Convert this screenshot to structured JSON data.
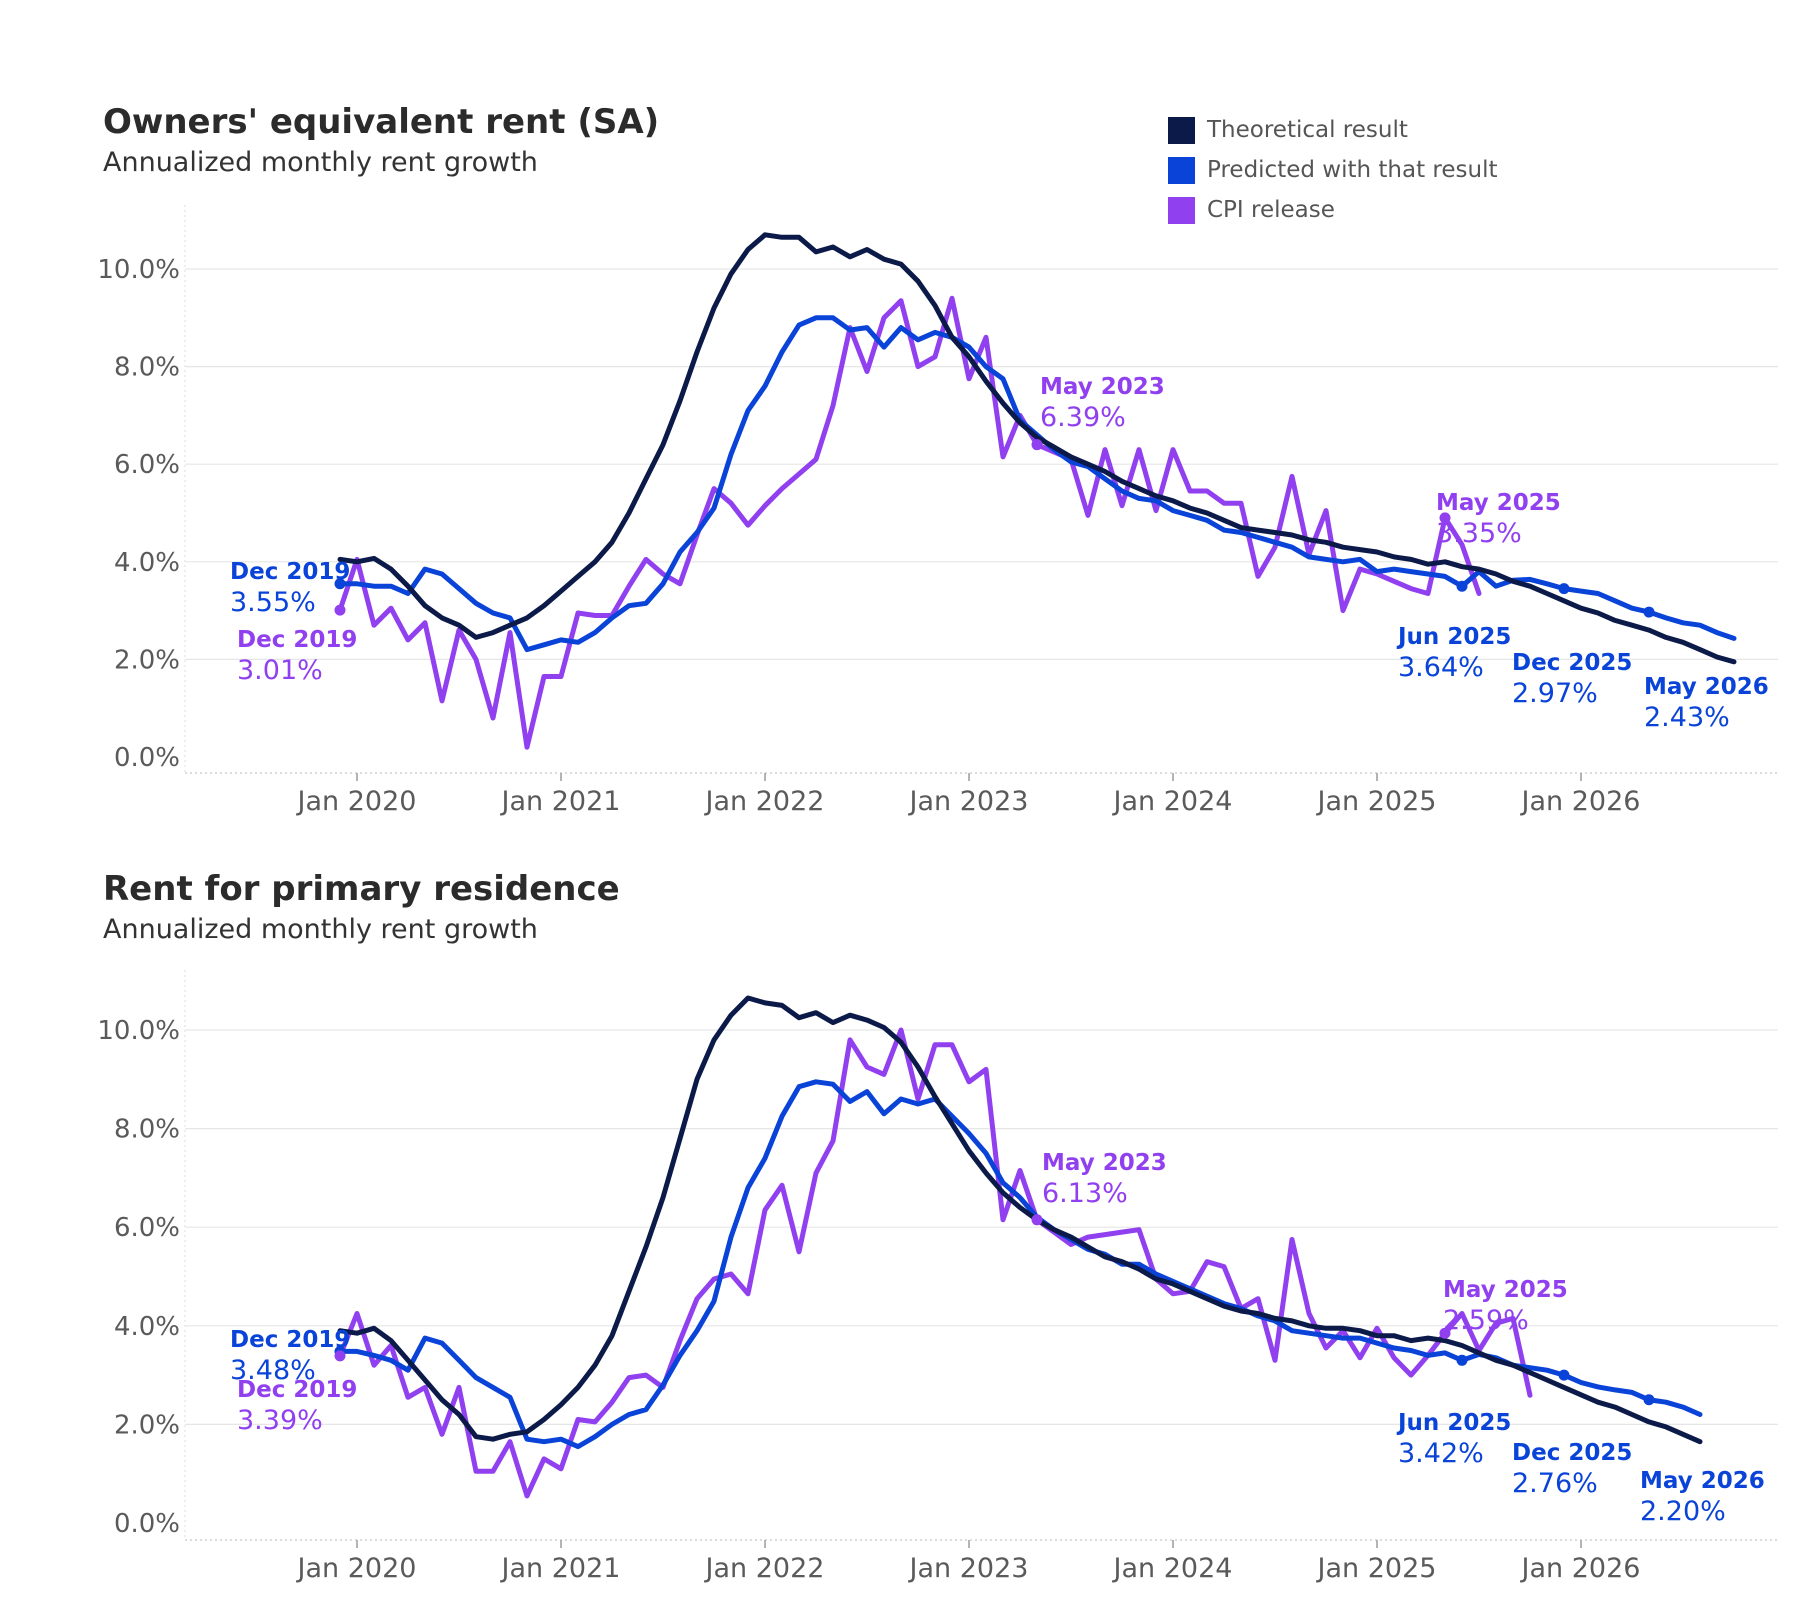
{
  "colors": {
    "theoretical": "#0b1a48",
    "predicted": "#0a43d8",
    "cpi": "#9140f0",
    "grid": "#e6e6e6",
    "axis_text": "#5a5a5a"
  },
  "legend": {
    "items": [
      {
        "label": "Theoretical result",
        "color": "#0b1a48"
      },
      {
        "label": "Predicted with that result",
        "color": "#0a43d8"
      },
      {
        "label": "CPI release",
        "color": "#9140f0"
      }
    ]
  },
  "chart_data": [
    {
      "type": "line",
      "title": "Owners' equivalent rent (SA)",
      "subtitle": "Annualized monthly rent growth",
      "ylim": [
        0,
        10.9
      ],
      "y_ticks": [
        "0.0%",
        "2.0%",
        "4.0%",
        "6.0%",
        "8.0%",
        "10.0%"
      ],
      "x_ticks": [
        "Jan 2020",
        "Jan 2021",
        "Jan 2022",
        "Jan 2023",
        "Jan 2024",
        "Jan 2025",
        "Jan 2026"
      ],
      "x_range": [
        "Dec 2019",
        "May 2026"
      ],
      "grid": true,
      "series": [
        {
          "name": "Theoretical result",
          "start": "Dec 2019",
          "values": [
            4.05,
            4.0,
            4.07,
            3.85,
            3.5,
            3.1,
            2.85,
            2.7,
            2.45,
            2.55,
            2.7,
            2.85,
            3.1,
            3.4,
            3.7,
            4.0,
            4.4,
            5.0,
            5.7,
            6.4,
            7.3,
            8.3,
            9.2,
            9.9,
            10.4,
            10.7,
            10.65,
            10.65,
            10.35,
            10.45,
            10.25,
            10.4,
            10.2,
            10.1,
            9.75,
            9.25,
            8.6,
            8.2,
            7.7,
            7.25,
            6.85,
            6.55,
            6.35,
            6.15,
            6.0,
            5.85,
            5.65,
            5.5,
            5.35,
            5.25,
            5.1,
            5.0,
            4.85,
            4.7,
            4.65,
            4.6,
            4.55,
            4.45,
            4.4,
            4.3,
            4.25,
            4.2,
            4.1,
            4.05,
            3.95,
            4.0,
            3.9,
            3.85,
            3.75,
            3.6,
            3.5,
            3.35,
            3.2,
            3.05,
            2.95,
            2.8,
            2.7,
            2.6,
            2.45,
            2.35,
            2.2,
            2.05,
            1.95
          ]
        },
        {
          "name": "Predicted with that result",
          "start": "Dec 2019",
          "values": [
            3.55,
            3.55,
            3.5,
            3.5,
            3.35,
            3.85,
            3.75,
            3.45,
            3.15,
            2.95,
            2.85,
            2.2,
            2.3,
            2.4,
            2.35,
            2.55,
            2.85,
            3.1,
            3.15,
            3.55,
            4.2,
            4.6,
            5.1,
            6.2,
            7.1,
            7.6,
            8.3,
            8.85,
            9.0,
            9.0,
            8.75,
            8.8,
            8.4,
            8.8,
            8.55,
            8.7,
            8.6,
            8.4,
            8.0,
            7.75,
            6.9,
            6.6,
            6.3,
            6.05,
            5.95,
            5.7,
            5.45,
            5.3,
            5.25,
            5.05,
            4.95,
            4.85,
            4.65,
            4.6,
            4.5,
            4.4,
            4.3,
            4.1,
            4.05,
            4.0,
            4.05,
            3.8,
            3.85,
            3.8,
            3.75,
            3.7,
            3.5,
            3.8,
            3.5,
            3.62,
            3.64,
            3.55,
            3.45,
            3.4,
            3.35,
            3.2,
            3.05,
            2.97,
            2.85,
            2.75,
            2.7,
            2.55,
            2.43
          ]
        },
        {
          "name": "CPI release",
          "start": "Dec 2019",
          "values": [
            3.01,
            4.05,
            2.7,
            3.05,
            2.4,
            2.75,
            1.15,
            2.6,
            2.0,
            0.8,
            2.55,
            0.2,
            1.65,
            1.65,
            2.95,
            2.9,
            2.9,
            3.5,
            4.05,
            3.75,
            3.55,
            4.55,
            5.5,
            5.2,
            4.75,
            5.15,
            5.5,
            5.8,
            6.1,
            7.2,
            8.8,
            7.9,
            9.0,
            9.35,
            8.0,
            8.2,
            9.4,
            7.75,
            8.6,
            6.15,
            7.0,
            6.4,
            6.25,
            6.1,
            4.95,
            6.3,
            5.15,
            6.3,
            5.05,
            6.3,
            5.45,
            5.45,
            5.2,
            5.2,
            3.7,
            4.3,
            5.75,
            4.15,
            5.05,
            3.0,
            3.85,
            3.75,
            3.6,
            3.45,
            3.35,
            4.9,
            4.35,
            3.35
          ]
        }
      ],
      "annotations": [
        {
          "label": "Dec 2019",
          "value": "3.55%",
          "series": "Predicted with that result",
          "point": "Dec 2019"
        },
        {
          "label": "Dec 2019",
          "value": "3.01%",
          "series": "CPI release",
          "point": "Dec 2019"
        },
        {
          "label": "May 2023",
          "value": "6.39%",
          "series": "CPI release",
          "point": "May 2023"
        },
        {
          "label": "May 2025",
          "value": "3.35%",
          "series": "CPI release",
          "point": "May 2025"
        },
        {
          "label": "Jun 2025",
          "value": "3.64%",
          "series": "Predicted with that result",
          "point": "Jun 2025"
        },
        {
          "label": "Dec 2025",
          "value": "2.97%",
          "series": "Predicted with that result",
          "point": "Dec 2025"
        },
        {
          "label": "May 2026",
          "value": "2.43%",
          "series": "Predicted with that result",
          "point": "May 2026"
        }
      ]
    },
    {
      "type": "line",
      "title": "Rent for primary residence",
      "subtitle": "Annualized monthly rent growth",
      "ylim": [
        0,
        10.9
      ],
      "y_ticks": [
        "0.0%",
        "2.0%",
        "4.0%",
        "6.0%",
        "8.0%",
        "10.0%"
      ],
      "x_ticks": [
        "Jan 2020",
        "Jan 2021",
        "Jan 2022",
        "Jan 2023",
        "Jan 2024",
        "Jan 2025",
        "Jan 2026"
      ],
      "x_range": [
        "Dec 2019",
        "May 2026"
      ],
      "grid": true,
      "series": [
        {
          "name": "Theoretical result",
          "start": "Dec 2019",
          "values": [
            3.9,
            3.85,
            3.95,
            3.7,
            3.3,
            2.9,
            2.5,
            2.2,
            1.75,
            1.7,
            1.8,
            1.85,
            2.1,
            2.4,
            2.75,
            3.2,
            3.8,
            4.7,
            5.6,
            6.6,
            7.8,
            9.0,
            9.8,
            10.3,
            10.65,
            10.55,
            10.5,
            10.25,
            10.35,
            10.15,
            10.3,
            10.2,
            10.05,
            9.75,
            9.25,
            8.65,
            8.1,
            7.55,
            7.1,
            6.7,
            6.4,
            6.15,
            5.95,
            5.8,
            5.6,
            5.4,
            5.3,
            5.15,
            4.95,
            4.85,
            4.7,
            4.55,
            4.4,
            4.3,
            4.25,
            4.15,
            4.1,
            4.0,
            3.95,
            3.95,
            3.9,
            3.8,
            3.8,
            3.7,
            3.75,
            3.7,
            3.6,
            3.45,
            3.3,
            3.2,
            3.05,
            2.9,
            2.75,
            2.6,
            2.45,
            2.35,
            2.2,
            2.05,
            1.95,
            1.8,
            1.65
          ]
        },
        {
          "name": "Predicted with that result",
          "start": "Dec 2019",
          "values": [
            3.48,
            3.48,
            3.4,
            3.3,
            3.1,
            3.75,
            3.65,
            3.3,
            2.95,
            2.75,
            2.55,
            1.7,
            1.65,
            1.7,
            1.55,
            1.75,
            2.0,
            2.2,
            2.3,
            2.8,
            3.4,
            3.9,
            4.5,
            5.8,
            6.8,
            7.4,
            8.25,
            8.85,
            8.95,
            8.9,
            8.55,
            8.75,
            8.3,
            8.6,
            8.5,
            8.6,
            8.25,
            7.9,
            7.5,
            6.9,
            6.6,
            6.2,
            5.95,
            5.75,
            5.55,
            5.45,
            5.25,
            5.25,
            5.05,
            4.9,
            4.75,
            4.6,
            4.45,
            4.35,
            4.2,
            4.1,
            3.9,
            3.85,
            3.8,
            3.75,
            3.75,
            3.65,
            3.55,
            3.5,
            3.4,
            3.45,
            3.3,
            3.42,
            3.35,
            3.2,
            3.15,
            3.1,
            3.0,
            2.85,
            2.76,
            2.7,
            2.65,
            2.5,
            2.45,
            2.35,
            2.2
          ]
        },
        {
          "name": "CPI release",
          "start": "Dec 2019",
          "values": [
            3.39,
            4.25,
            3.2,
            3.6,
            2.55,
            2.75,
            1.8,
            2.75,
            1.05,
            1.05,
            1.65,
            0.55,
            1.3,
            1.1,
            2.1,
            2.05,
            2.45,
            2.95,
            3.0,
            2.75,
            3.7,
            4.55,
            4.95,
            5.05,
            4.65,
            6.35,
            6.85,
            5.5,
            7.1,
            7.75,
            9.8,
            9.25,
            9.1,
            10.0,
            8.6,
            9.7,
            9.7,
            8.95,
            9.2,
            6.15,
            7.15,
            6.15,
            5.9,
            5.65,
            5.8,
            5.85,
            5.9,
            5.95,
            4.95,
            4.65,
            4.7,
            5.3,
            5.2,
            4.35,
            4.55,
            3.3,
            5.75,
            4.25,
            3.55,
            3.9,
            3.35,
            3.95,
            3.35,
            3.0,
            3.4,
            3.85,
            4.25,
            3.5,
            4.05,
            4.15,
            2.59
          ]
        }
      ],
      "annotations": [
        {
          "label": "Dec 2019",
          "value": "3.48%",
          "series": "Predicted with that result",
          "point": "Dec 2019"
        },
        {
          "label": "Dec 2019",
          "value": "3.39%",
          "series": "CPI release",
          "point": "Dec 2019"
        },
        {
          "label": "May 2023",
          "value": "6.13%",
          "series": "CPI release",
          "point": "May 2023"
        },
        {
          "label": "May 2025",
          "value": "2.59%",
          "series": "CPI release",
          "point": "May 2025"
        },
        {
          "label": "Jun 2025",
          "value": "3.42%",
          "series": "Predicted with that result",
          "point": "Jun 2025"
        },
        {
          "label": "Dec 2025",
          "value": "2.76%",
          "series": "Predicted with that result",
          "point": "Dec 2025"
        },
        {
          "label": "May 2026",
          "value": "2.20%",
          "series": "Predicted with that result",
          "point": "May 2026"
        }
      ]
    }
  ]
}
